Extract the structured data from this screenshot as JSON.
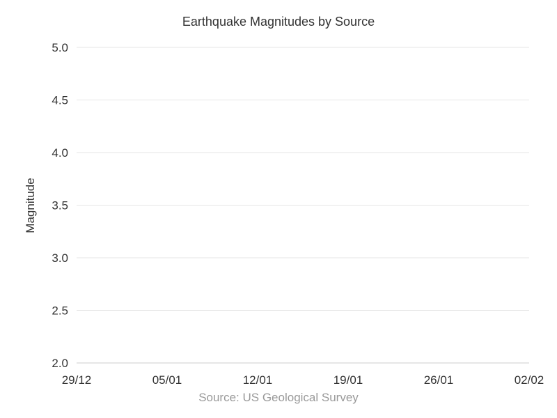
{
  "chart_data": {
    "type": "scatter",
    "title": "Earthquake Magnitudes by Source",
    "xlabel": "",
    "ylabel": "Magnitude",
    "x_ticks": [
      "29/12",
      "05/01",
      "12/01",
      "19/01",
      "26/01",
      "02/02"
    ],
    "y_ticks": [
      "2.0",
      "2.5",
      "3.0",
      "3.5",
      "4.0",
      "4.5",
      "5.0"
    ],
    "ylim": [
      2.0,
      5.0
    ],
    "grid": true,
    "series": []
  },
  "source_text": "Source: US Geological Survey",
  "colors": {
    "gridline": "#e6e6e6",
    "axis_line": "#cccccc",
    "text": "#333333",
    "source_text": "#999999"
  }
}
